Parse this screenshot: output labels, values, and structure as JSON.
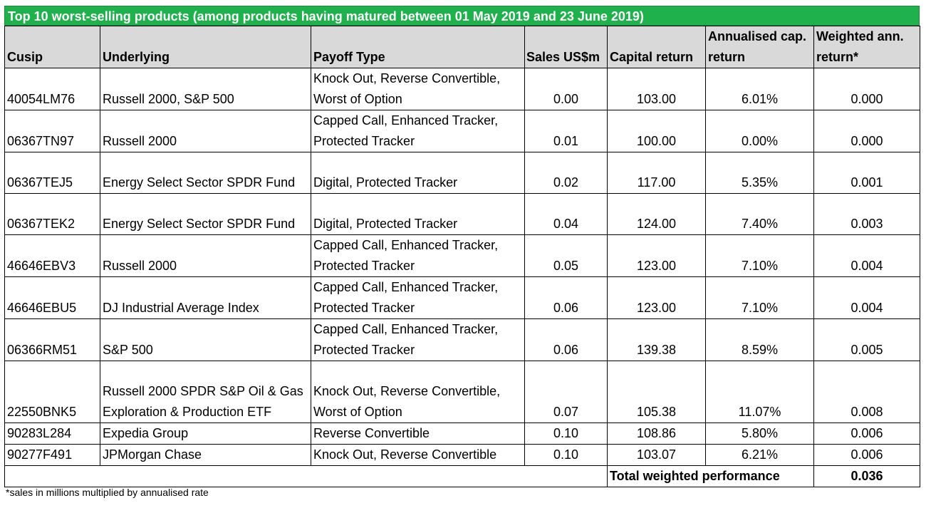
{
  "title": "Top 10 worst-selling products (among products having matured between 01 May 2019 and 23 June 2019)",
  "headers": {
    "cusip": "Cusip",
    "underlying": "Underlying",
    "payoff": "Payoff Type",
    "sales": "Sales US$m",
    "capital_return": "Capital return",
    "annualised": "Annualised cap. return",
    "weighted": "Weighted ann. return*"
  },
  "rows": [
    {
      "cusip": "40054LM76",
      "underlying": "Russell 2000, S&P 500",
      "payoff": "Knock Out, Reverse Convertible, Worst of Option",
      "sales": "0.00",
      "capital_return": "103.00",
      "annualised": "6.01%",
      "weighted": "0.000"
    },
    {
      "cusip": "06367TN97",
      "underlying": "Russell 2000",
      "payoff": "Capped Call, Enhanced Tracker, Protected Tracker",
      "sales": "0.01",
      "capital_return": "100.00",
      "annualised": "0.00%",
      "weighted": "0.000"
    },
    {
      "cusip": "06367TEJ5",
      "underlying": "Energy Select Sector SPDR Fund",
      "payoff": "Digital, Protected Tracker",
      "sales": "0.02",
      "capital_return": "117.00",
      "annualised": "5.35%",
      "weighted": "0.001"
    },
    {
      "cusip": "06367TEK2",
      "underlying": "Energy Select Sector SPDR Fund",
      "payoff": "Digital, Protected Tracker",
      "sales": "0.04",
      "capital_return": "124.00",
      "annualised": "7.40%",
      "weighted": "0.003"
    },
    {
      "cusip": "46646EBV3",
      "underlying": "Russell 2000",
      "payoff": "Capped Call, Enhanced Tracker, Protected Tracker",
      "sales": "0.05",
      "capital_return": "123.00",
      "annualised": "7.10%",
      "weighted": "0.004"
    },
    {
      "cusip": "46646EBU5",
      "underlying": "DJ Industrial Average Index",
      "payoff": "Capped Call, Enhanced Tracker, Protected Tracker",
      "sales": "0.06",
      "capital_return": "123.00",
      "annualised": "7.10%",
      "weighted": "0.004"
    },
    {
      "cusip": "06366RM51",
      "underlying": "S&P 500",
      "payoff": "Capped Call, Enhanced Tracker, Protected Tracker",
      "sales": "0.06",
      "capital_return": "139.38",
      "annualised": "8.59%",
      "weighted": "0.005"
    },
    {
      "cusip": "22550BNK5",
      "underlying": "Russell 2000 SPDR S&P Oil & Gas Exploration & Production ETF",
      "payoff": "Knock Out, Reverse Convertible, Worst of Option",
      "sales": "0.07",
      "capital_return": "105.38",
      "annualised": "11.07%",
      "weighted": "0.008"
    },
    {
      "cusip": "90283L284",
      "underlying": "Expedia Group",
      "payoff": "Reverse Convertible",
      "sales": "0.10",
      "capital_return": "108.86",
      "annualised": "5.80%",
      "weighted": "0.006"
    },
    {
      "cusip": "90277F491",
      "underlying": "JPMorgan Chase",
      "payoff": "Knock Out, Reverse Convertible",
      "sales": "0.10",
      "capital_return": "103.07",
      "annualised": "6.21%",
      "weighted": "0.006"
    }
  ],
  "total": {
    "label": "Total weighted performance",
    "value": "0.036"
  },
  "footnote": "*sales in millions multiplied by annualised rate",
  "colors": {
    "title_bg": "#1fb14c",
    "header_bg": "#d9d9d9"
  }
}
